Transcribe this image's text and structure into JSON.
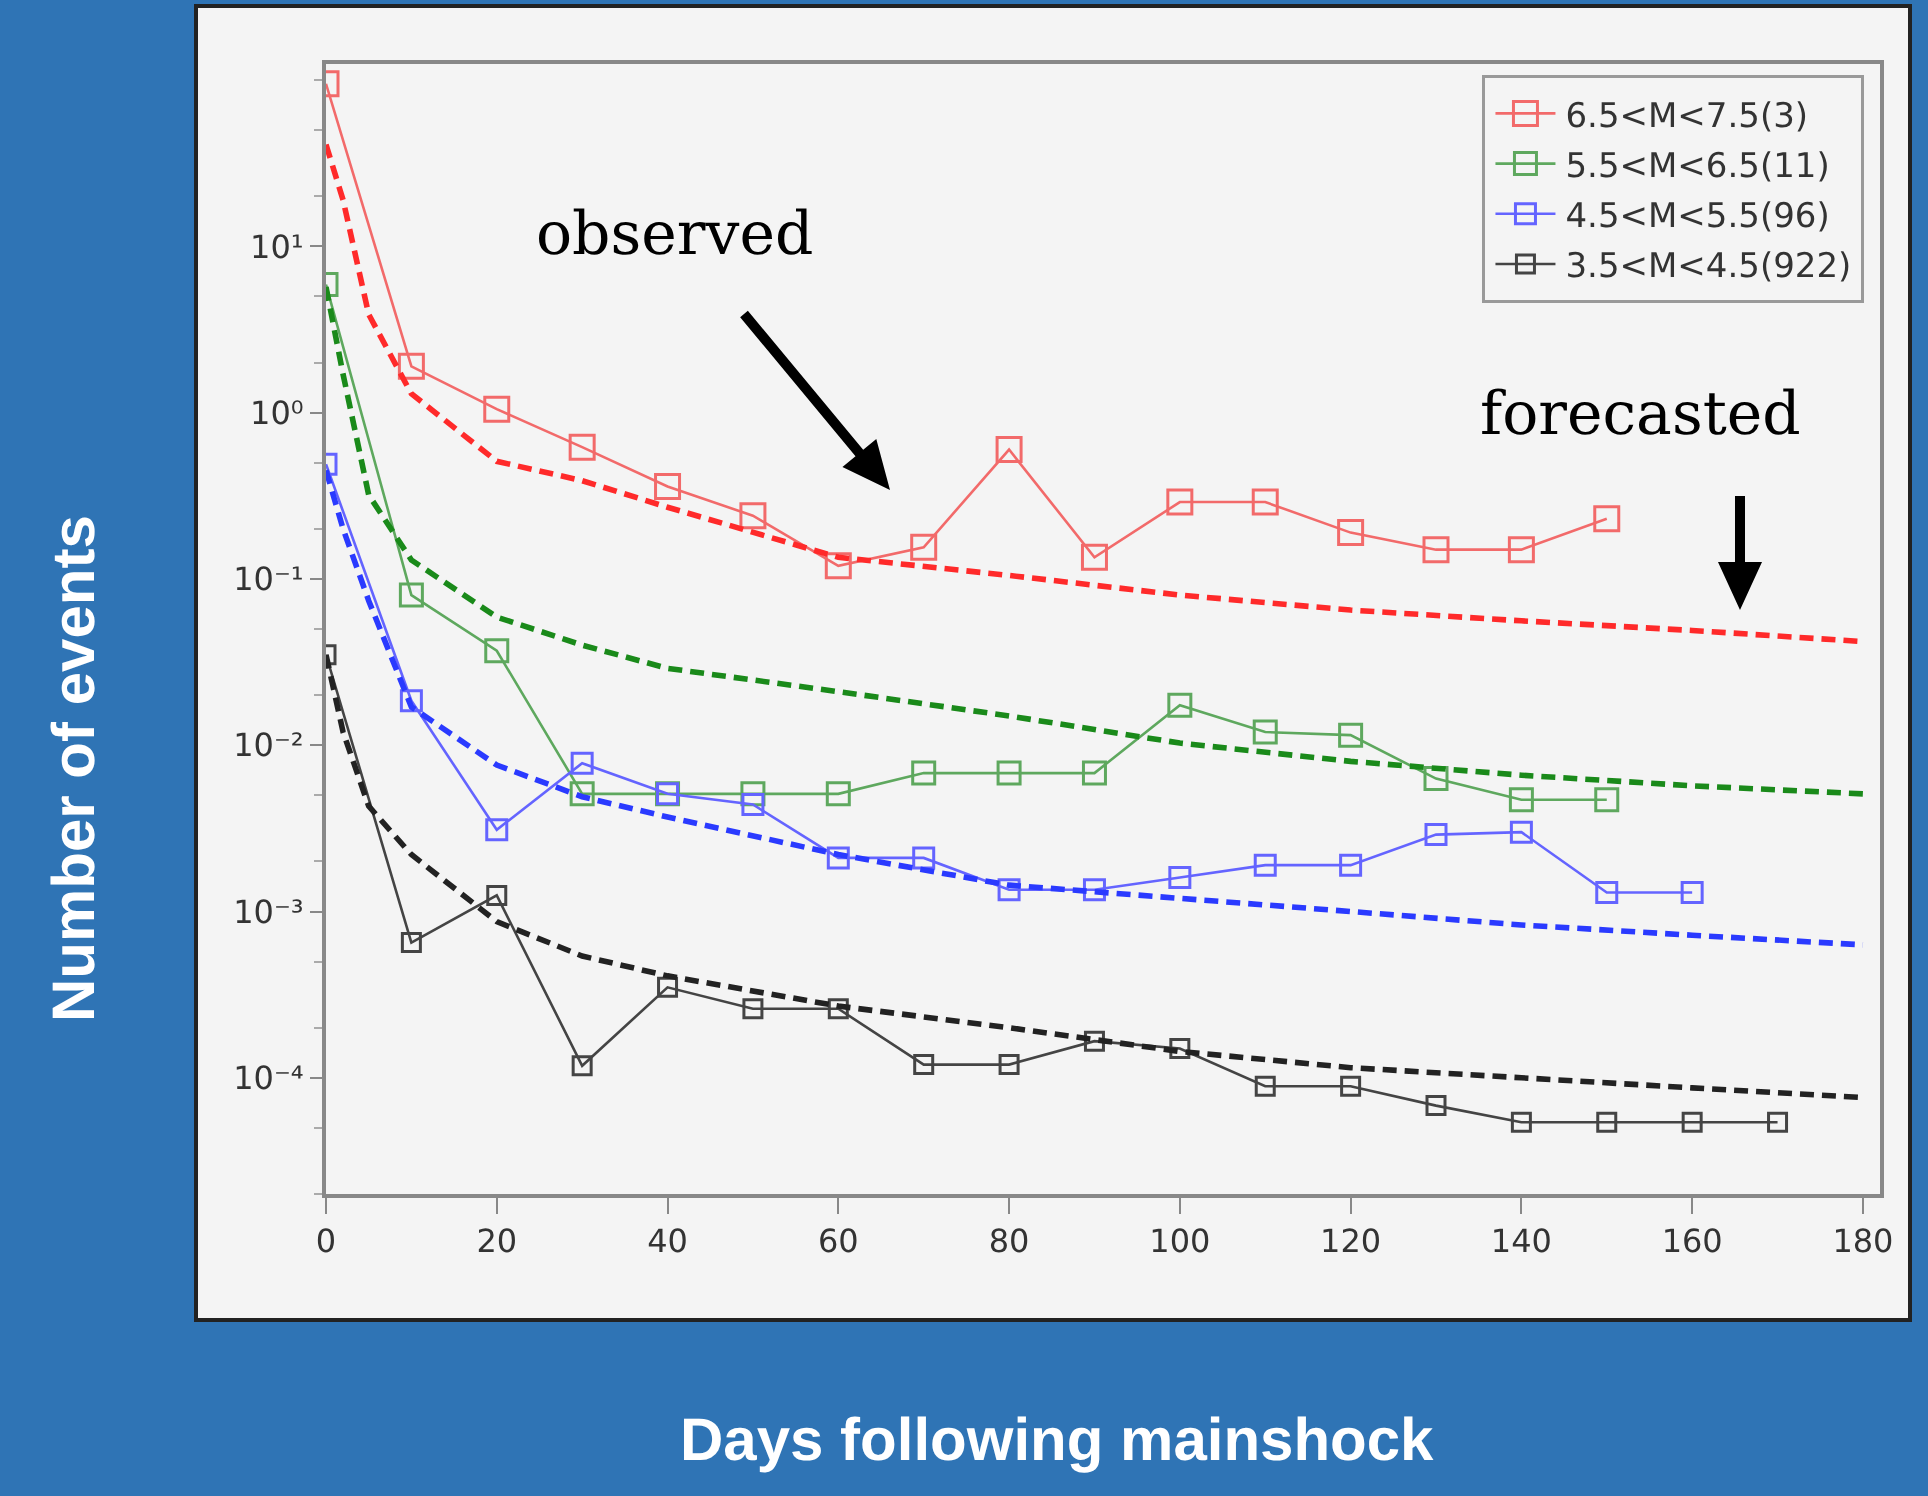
{
  "chart_data": {
    "type": "line",
    "xlabel": "Days following mainshock",
    "ylabel": "Number of events",
    "log": "y",
    "xlim": [
      0,
      182
    ],
    "xticks": [
      0,
      20,
      40,
      60,
      80,
      100,
      120,
      140,
      160,
      180
    ],
    "ylim": [
      2e-05,
      125
    ],
    "yticks": [
      {
        "value": 10,
        "label": "10¹"
      },
      {
        "value": 1,
        "label": "10⁰"
      },
      {
        "value": 0.1,
        "label": "10⁻¹"
      },
      {
        "value": 0.01,
        "label": "10⁻²"
      },
      {
        "value": 0.001,
        "label": "10⁻³"
      },
      {
        "value": 0.0001,
        "label": "10⁻⁴"
      }
    ],
    "grid": false,
    "legend": "top right",
    "annotations": [
      "observed",
      "forecasted"
    ],
    "series": [
      {
        "name": "6.5<M<7.5(3)",
        "color": "#f26a6a",
        "marker": "square",
        "line_style": "solid",
        "x": [
          0,
          10,
          20,
          30,
          40,
          50,
          60,
          70,
          80,
          90,
          100,
          110,
          120,
          130,
          140,
          150
        ],
        "values": [
          95,
          1.9,
          1.05,
          0.62,
          0.36,
          0.24,
          0.12,
          0.155,
          0.6,
          0.135,
          0.29,
          0.29,
          0.19,
          0.15,
          0.15,
          0.23
        ]
      },
      {
        "name": "5.5<M<6.5(11)",
        "color": "#5ea85e",
        "marker": "square",
        "line_style": "solid",
        "x": [
          0,
          10,
          20,
          30,
          40,
          50,
          60,
          70,
          80,
          90,
          100,
          110,
          120,
          130,
          140,
          150
        ],
        "values": [
          5.9,
          0.08,
          0.037,
          0.0051,
          0.0051,
          0.0051,
          0.0051,
          0.0068,
          0.0068,
          0.0068,
          0.0174,
          0.012,
          0.0115,
          0.0063,
          0.0047,
          0.0047
        ]
      },
      {
        "name": "4.5<M<5.5(96)",
        "color": "#6464ff",
        "marker": "square",
        "line_style": "solid",
        "x": [
          0,
          10,
          20,
          30,
          40,
          50,
          60,
          70,
          80,
          90,
          100,
          110,
          120,
          130,
          140,
          150,
          160
        ],
        "values": [
          0.49,
          0.0185,
          0.0031,
          0.0078,
          0.0051,
          0.0044,
          0.0021,
          0.0021,
          0.00135,
          0.00135,
          0.0016,
          0.0019,
          0.0019,
          0.0029,
          0.003,
          0.0013,
          0.0013
        ]
      },
      {
        "name": "3.5<M<4.5(922)",
        "color": "#444444",
        "marker": "square",
        "line_style": "solid",
        "x": [
          0,
          10,
          20,
          30,
          40,
          50,
          60,
          70,
          80,
          90,
          100,
          110,
          120,
          130,
          140,
          150,
          160,
          170
        ],
        "values": [
          0.035,
          0.00065,
          0.00125,
          0.000118,
          0.00035,
          0.00026,
          0.00026,
          0.00012,
          0.00012,
          0.000166,
          0.00015,
          8.9e-05,
          8.9e-05,
          6.8e-05,
          5.4e-05,
          5.4e-05,
          5.4e-05,
          5.4e-05
        ]
      },
      {
        "color": "#ff2a2a",
        "marker": "none",
        "line_style": "dashed",
        "x": [
          0,
          2,
          5,
          10,
          20,
          30,
          40,
          60,
          80,
          100,
          120,
          140,
          160,
          180
        ],
        "values": [
          41,
          19,
          3.9,
          1.3,
          0.51,
          0.39,
          0.27,
          0.135,
          0.105,
          0.08,
          0.065,
          0.056,
          0.049,
          0.042
        ]
      },
      {
        "color": "#1a8a1a",
        "marker": "none",
        "line_style": "dashed",
        "x": [
          0,
          2,
          5,
          10,
          20,
          30,
          40,
          60,
          80,
          100,
          120,
          140,
          160,
          180
        ],
        "values": [
          5.7,
          1.7,
          0.32,
          0.13,
          0.059,
          0.04,
          0.029,
          0.021,
          0.015,
          0.0103,
          0.008,
          0.0066,
          0.0057,
          0.0051
        ]
      },
      {
        "color": "#2a3aff",
        "marker": "none",
        "line_style": "dashed",
        "x": [
          0,
          2,
          5,
          10,
          20,
          30,
          40,
          60,
          80,
          100,
          120,
          140,
          160,
          180
        ],
        "values": [
          0.45,
          0.2,
          0.074,
          0.017,
          0.0076,
          0.0049,
          0.0037,
          0.0022,
          0.00144,
          0.0012,
          0.001,
          0.00083,
          0.00072,
          0.00063
        ]
      },
      {
        "color": "#222222",
        "marker": "none",
        "line_style": "dashed",
        "x": [
          0,
          2,
          5,
          10,
          20,
          30,
          40,
          60,
          80,
          100,
          120,
          140,
          160,
          180
        ],
        "values": [
          0.035,
          0.012,
          0.0043,
          0.0022,
          0.00087,
          0.00054,
          0.00041,
          0.00027,
          0.0002,
          0.000144,
          0.000115,
          0.0001,
          8.7e-05,
          7.6e-05
        ]
      }
    ]
  }
}
